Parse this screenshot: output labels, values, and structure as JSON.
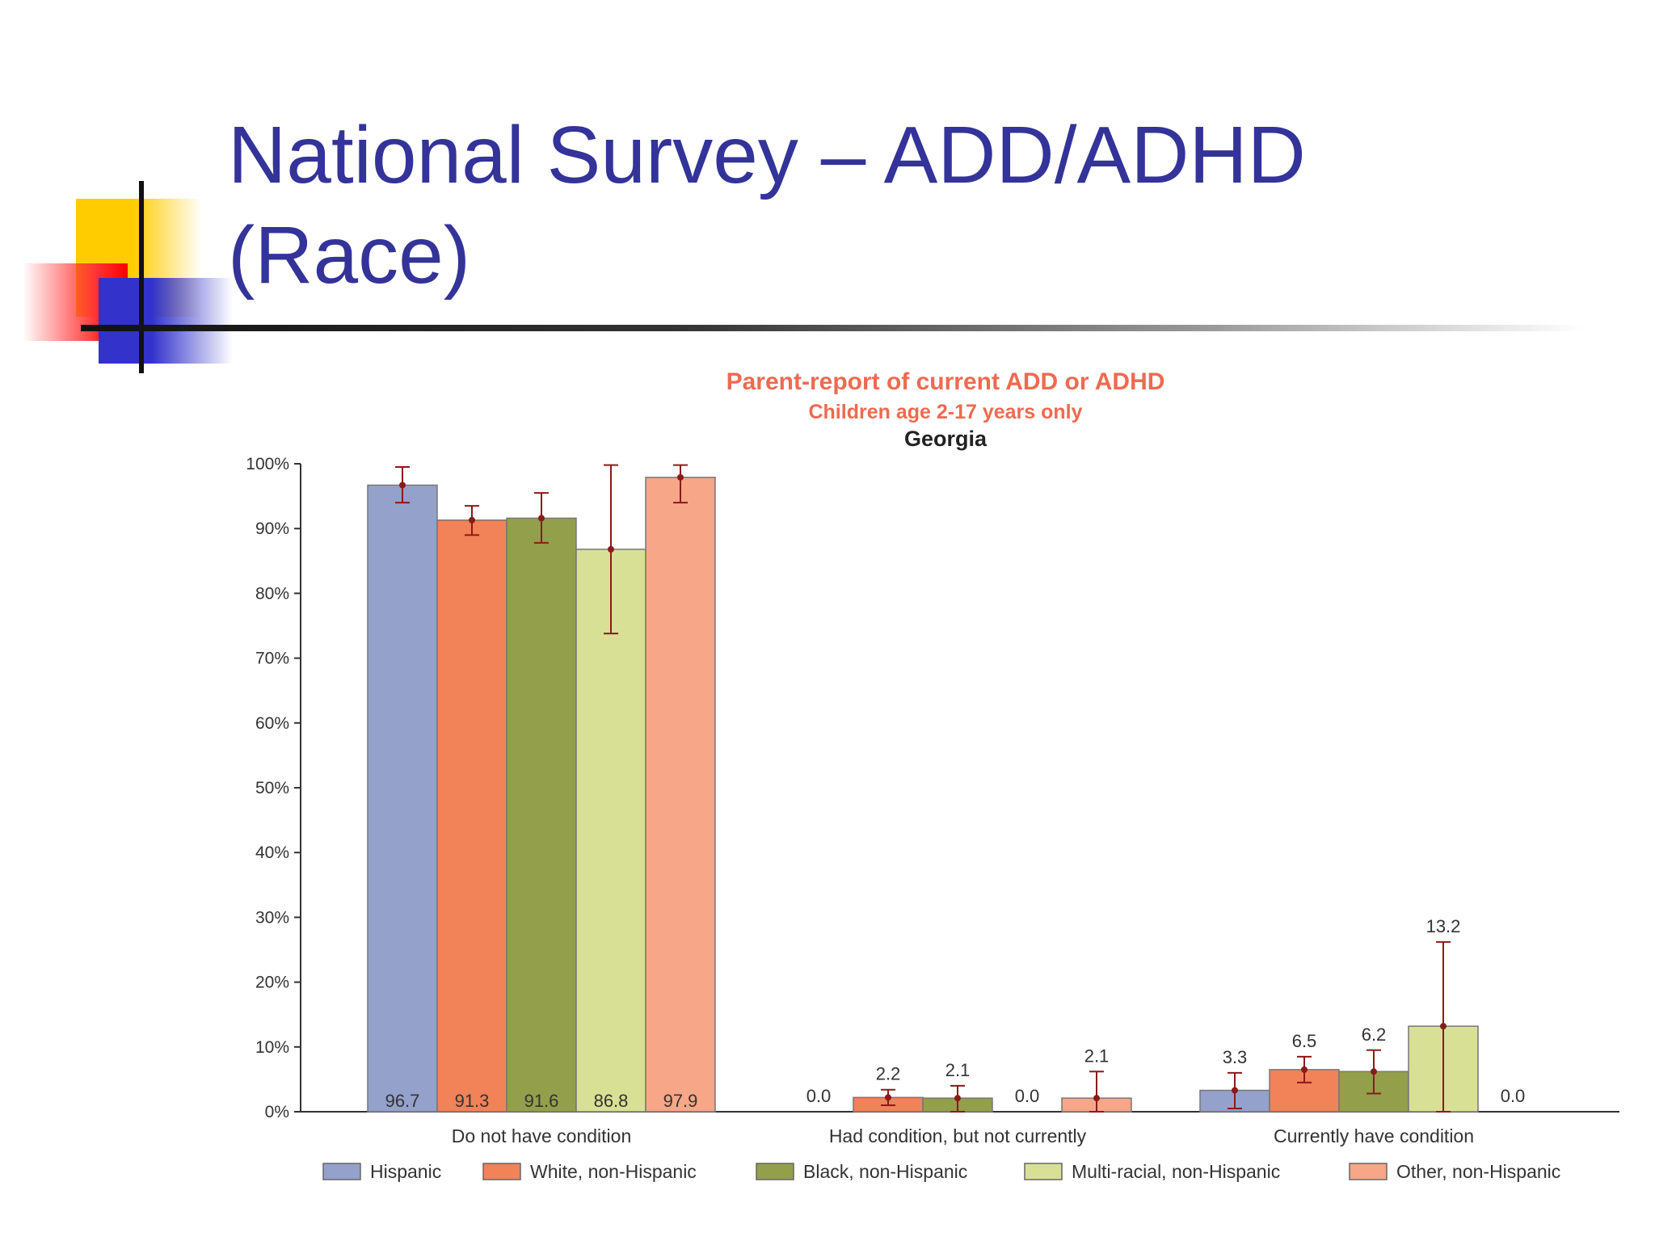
{
  "slide": {
    "title_line1": "National Survey – ADD/ADHD",
    "title_line2": "(Race)",
    "title_color": "#333399"
  },
  "chart_data": {
    "type": "bar",
    "title": "Parent-report of current ADD or ADHD",
    "subtitle": "Children age 2-17 years only",
    "region": "Georgia",
    "categories": [
      "Do not have condition",
      "Had condition, but not currently",
      "Currently have condition"
    ],
    "ylim": [
      0,
      100
    ],
    "yticks": [
      "0%",
      "10%",
      "20%",
      "30%",
      "40%",
      "50%",
      "60%",
      "70%",
      "80%",
      "90%",
      "100%"
    ],
    "legend_position": "bottom",
    "grid": false,
    "series": [
      {
        "name": "Hispanic",
        "color": "#94a1cb",
        "values": [
          96.7,
          0.0,
          3.3
        ],
        "labels": [
          "96.7",
          "0.0",
          "3.3"
        ],
        "ci": [
          [
            94,
            99.5
          ],
          [
            0,
            0
          ],
          [
            0.5,
            6
          ]
        ]
      },
      {
        "name": "White, non-Hispanic",
        "color": "#f28257",
        "values": [
          91.3,
          2.2,
          6.5
        ],
        "labels": [
          "91.3",
          "2.2",
          "6.5"
        ],
        "ci": [
          [
            89,
            93.5
          ],
          [
            1,
            3.4
          ],
          [
            4.5,
            8.5
          ]
        ]
      },
      {
        "name": "Black, non-Hispanic",
        "color": "#939f4a",
        "values": [
          91.6,
          2.1,
          6.2
        ],
        "labels": [
          "91.6",
          "2.1",
          "6.2"
        ],
        "ci": [
          [
            87.8,
            95.5
          ],
          [
            0,
            4
          ],
          [
            2.8,
            9.5
          ]
        ]
      },
      {
        "name": "Multi-racial, non-Hispanic",
        "color": "#d8e095",
        "values": [
          86.8,
          0.0,
          13.2
        ],
        "labels": [
          "86.8",
          "0.0",
          "13.2"
        ],
        "ci": [
          [
            73.8,
            99.8
          ],
          [
            0,
            0
          ],
          [
            0,
            26.2
          ]
        ]
      },
      {
        "name": "Other, non-Hispanic",
        "color": "#f8a688",
        "values": [
          97.9,
          2.1,
          0.0
        ],
        "labels": [
          "97.9",
          "2.1",
          "0.0"
        ],
        "ci": [
          [
            94,
            99.8
          ],
          [
            0,
            6.2
          ],
          [
            0,
            0
          ]
        ]
      }
    ],
    "error_bar_color": "#8b1a1a"
  }
}
